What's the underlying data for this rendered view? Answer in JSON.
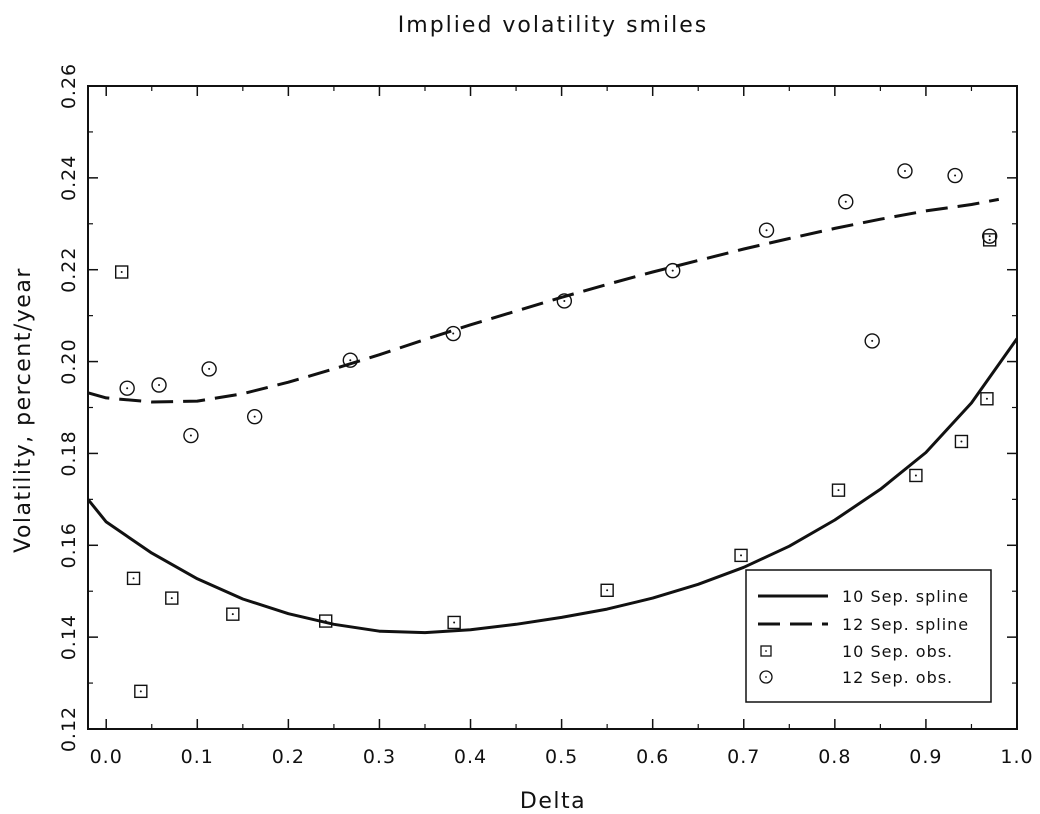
{
  "chart_data": {
    "type": "scatter",
    "title": "Implied volatility smiles",
    "xlabel": "Delta",
    "ylabel": "Volatility, percent/year",
    "xlim": [
      -0.02,
      1.0
    ],
    "ylim": [
      0.12,
      0.26
    ],
    "x_ticks": [
      "0.0",
      "0.1",
      "0.2",
      "0.3",
      "0.4",
      "0.5",
      "0.6",
      "0.7",
      "0.8",
      "0.9",
      "1.0"
    ],
    "y_ticks": [
      "0.12",
      "0.14",
      "0.16",
      "0.18",
      "0.20",
      "0.22",
      "0.24",
      "0.26"
    ],
    "grid": false,
    "legend_position": "bottom-right",
    "series": [
      {
        "name": "10 Sep. spline",
        "style": "solid-line",
        "x": [
          -0.02,
          0.0,
          0.05,
          0.1,
          0.15,
          0.2,
          0.25,
          0.3,
          0.35,
          0.4,
          0.45,
          0.5,
          0.55,
          0.6,
          0.65,
          0.7,
          0.75,
          0.8,
          0.85,
          0.9,
          0.95,
          1.0
        ],
        "y": [
          0.17,
          0.1651,
          0.1583,
          0.1527,
          0.1483,
          0.1451,
          0.1428,
          0.1413,
          0.141,
          0.1416,
          0.1428,
          0.1443,
          0.1461,
          0.1485,
          0.1515,
          0.1552,
          0.1598,
          0.1655,
          0.1722,
          0.1802,
          0.191,
          0.205
        ]
      },
      {
        "name": "12 Sep. spline",
        "style": "dashed-line",
        "x": [
          -0.02,
          0.0,
          0.05,
          0.1,
          0.15,
          0.2,
          0.25,
          0.3,
          0.35,
          0.4,
          0.45,
          0.5,
          0.55,
          0.6,
          0.65,
          0.7,
          0.75,
          0.8,
          0.85,
          0.9,
          0.95,
          0.98
        ],
        "y": [
          0.1932,
          0.1921,
          0.1912,
          0.1914,
          0.193,
          0.1955,
          0.1984,
          0.2015,
          0.2048,
          0.208,
          0.211,
          0.214,
          0.2168,
          0.2195,
          0.222,
          0.2245,
          0.2268,
          0.229,
          0.231,
          0.2328,
          0.2342,
          0.2353
        ]
      },
      {
        "name": "10 Sep. obs.",
        "marker": "square",
        "points": [
          [
            0.017,
            0.2195
          ],
          [
            0.03,
            0.1528
          ],
          [
            0.038,
            0.1282
          ],
          [
            0.072,
            0.1485
          ],
          [
            0.139,
            0.145
          ],
          [
            0.241,
            0.1435
          ],
          [
            0.382,
            0.1432
          ],
          [
            0.55,
            0.1502
          ],
          [
            0.697,
            0.1578
          ],
          [
            0.804,
            0.172
          ],
          [
            0.889,
            0.1752
          ],
          [
            0.939,
            0.1826
          ],
          [
            0.967,
            0.1919
          ],
          [
            0.97,
            0.2265
          ]
        ]
      },
      {
        "name": "12 Sep. obs.",
        "marker": "circle",
        "points": [
          [
            0.023,
            0.1942
          ],
          [
            0.058,
            0.1949
          ],
          [
            0.093,
            0.1839
          ],
          [
            0.113,
            0.1984
          ],
          [
            0.163,
            0.188
          ],
          [
            0.268,
            0.2003
          ],
          [
            0.381,
            0.2061
          ],
          [
            0.503,
            0.2132
          ],
          [
            0.622,
            0.2198
          ],
          [
            0.725,
            0.2286
          ],
          [
            0.812,
            0.2348
          ],
          [
            0.841,
            0.2045
          ],
          [
            0.877,
            0.2415
          ],
          [
            0.932,
            0.2405
          ],
          [
            0.97,
            0.2273
          ]
        ]
      }
    ]
  }
}
